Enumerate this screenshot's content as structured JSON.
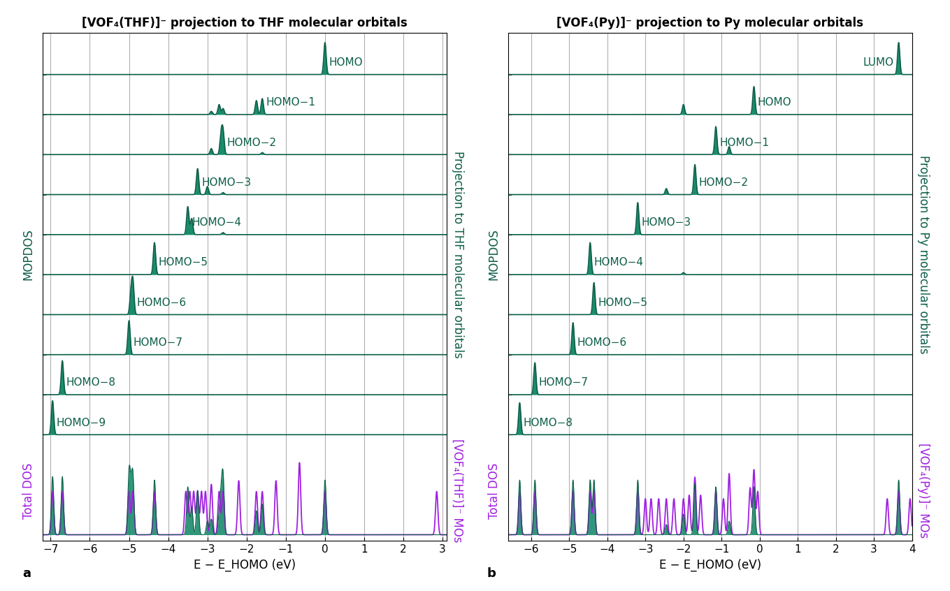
{
  "chart_data": [
    {
      "type": "line",
      "panel": "a",
      "title": "[VOF₄(THF)]⁻ projection to THF molecular orbitals",
      "x_label": "E − E_HOMO (eV)",
      "y_label": "MOPDOS",
      "y2_label": "Projection to THF molecular orbitals",
      "total_label": "Total DOS",
      "total_y2_label": "[VOF₄(THF)]⁻ MOs",
      "xlim": [
        -7.2,
        3.1
      ],
      "xticks": [
        {
          "value": -7,
          "label": "−7"
        },
        {
          "value": -6,
          "label": "−6"
        },
        {
          "value": -5,
          "label": "−5"
        },
        {
          "value": -4,
          "label": "−4"
        },
        {
          "value": -3,
          "label": "−3"
        },
        {
          "value": -2,
          "label": "−2"
        },
        {
          "value": -1,
          "label": "−1"
        },
        0,
        1,
        2,
        3
      ],
      "grid": true,
      "tick_labels": "x",
      "series": [
        {
          "name": "HOMO",
          "color": "#1a8c6c",
          "peak_energies": [
            0.0
          ],
          "peak_heights": [
            0.8
          ]
        },
        {
          "name": "HOMO−1",
          "color": "#1a8c6c",
          "peak_energies": [
            -2.9,
            -2.7,
            -2.6,
            -1.75,
            -1.6
          ],
          "peak_heights": [
            0.08,
            0.25,
            0.15,
            0.35,
            0.4
          ]
        },
        {
          "name": "HOMO−2",
          "color": "#1a8c6c",
          "peak_energies": [
            -2.9,
            -2.65,
            -2.6,
            -1.6
          ],
          "peak_heights": [
            0.15,
            0.5,
            0.55,
            0.05
          ]
        },
        {
          "name": "HOMO−3",
          "color": "#1a8c6c",
          "peak_energies": [
            -3.25,
            -3.0,
            -2.6
          ],
          "peak_heights": [
            0.65,
            0.2,
            0.05
          ]
        },
        {
          "name": "HOMO−4",
          "color": "#1a8c6c",
          "peak_energies": [
            -3.5,
            -3.4,
            -2.6
          ],
          "peak_heights": [
            0.7,
            0.4,
            0.05
          ]
        },
        {
          "name": "HOMO−5",
          "color": "#1a8c6c",
          "peak_energies": [
            -4.35
          ],
          "peak_heights": [
            0.8
          ]
        },
        {
          "name": "HOMO−6",
          "color": "#1a8c6c",
          "peak_energies": [
            -4.95,
            -4.9
          ],
          "peak_heights": [
            0.5,
            0.8
          ]
        },
        {
          "name": "HOMO−7",
          "color": "#1a8c6c",
          "peak_energies": [
            -5.0
          ],
          "peak_heights": [
            0.85
          ]
        },
        {
          "name": "HOMO−8",
          "color": "#1a8c6c",
          "peak_energies": [
            -6.7
          ],
          "peak_heights": [
            0.85
          ]
        },
        {
          "name": "HOMO−9",
          "color": "#1a8c6c",
          "peak_energies": [
            -6.95
          ],
          "peak_heights": [
            0.85
          ]
        }
      ],
      "total_dos": {
        "color": "#a020e0",
        "peak_energies": [
          -6.95,
          -6.7,
          -5.0,
          -4.9,
          -4.35,
          -3.55,
          -3.45,
          -3.35,
          -3.25,
          -3.15,
          -3.05,
          -2.9,
          -2.7,
          -2.6,
          -2.2,
          -1.75,
          -1.6,
          -1.25,
          -0.65,
          0.0,
          2.85
        ],
        "peak_heights": [
          0.6,
          0.6,
          0.6,
          0.6,
          0.6,
          0.6,
          0.6,
          0.6,
          0.6,
          0.6,
          0.6,
          0.7,
          0.6,
          0.6,
          0.75,
          0.6,
          0.6,
          0.75,
          1.0,
          0.6,
          0.6
        ]
      }
    },
    {
      "type": "line",
      "panel": "b",
      "title": "[VOF₄(Py)]⁻ projection to Py molecular orbitals",
      "x_label": "E − E_HOMO (eV)",
      "y_label": "MOPDOS",
      "y2_label": "Projection to Py molecular orbitals",
      "total_label": "Total DOS",
      "total_y2_label": "[VOF₄(Py)]⁻ MOs",
      "xlim": [
        -6.6,
        4.0
      ],
      "xticks": [
        {
          "value": -6,
          "label": "−6"
        },
        {
          "value": -5,
          "label": "−5"
        },
        {
          "value": -4,
          "label": "−4"
        },
        {
          "value": -3,
          "label": "−3"
        },
        {
          "value": -2,
          "label": "−2"
        },
        {
          "value": -1,
          "label": "−1"
        },
        0,
        1,
        2,
        3,
        4
      ],
      "grid": true,
      "tick_labels": "x",
      "series": [
        {
          "name": "LUMO",
          "color": "#1a8c6c",
          "peak_energies": [
            3.65
          ],
          "peak_heights": [
            0.8
          ]
        },
        {
          "name": "HOMO",
          "color": "#1a8c6c",
          "peak_energies": [
            -2.0,
            -0.15
          ],
          "peak_heights": [
            0.25,
            0.7
          ]
        },
        {
          "name": "HOMO−1",
          "color": "#1a8c6c",
          "peak_energies": [
            -1.15,
            -0.8
          ],
          "peak_heights": [
            0.7,
            0.2
          ]
        },
        {
          "name": "HOMO−2",
          "color": "#1a8c6c",
          "peak_energies": [
            -2.45,
            -1.7
          ],
          "peak_heights": [
            0.15,
            0.75
          ]
        },
        {
          "name": "HOMO−3",
          "color": "#1a8c6c",
          "peak_energies": [
            -3.2
          ],
          "peak_heights": [
            0.8
          ]
        },
        {
          "name": "HOMO−4",
          "color": "#1a8c6c",
          "peak_energies": [
            -4.45,
            -2.0
          ],
          "peak_heights": [
            0.8,
            0.05
          ]
        },
        {
          "name": "HOMO−5",
          "color": "#1a8c6c",
          "peak_energies": [
            -4.35
          ],
          "peak_heights": [
            0.8
          ]
        },
        {
          "name": "HOMO−6",
          "color": "#1a8c6c",
          "peak_energies": [
            -4.9
          ],
          "peak_heights": [
            0.8
          ]
        },
        {
          "name": "HOMO−7",
          "color": "#1a8c6c",
          "peak_energies": [
            -5.9
          ],
          "peak_heights": [
            0.8
          ]
        },
        {
          "name": "HOMO−8",
          "color": "#1a8c6c",
          "peak_energies": [
            -6.3
          ],
          "peak_heights": [
            0.8
          ]
        }
      ],
      "total_dos": {
        "color": "#a020e0",
        "peak_energies": [
          -6.3,
          -5.9,
          -4.9,
          -4.45,
          -4.35,
          -3.2,
          -3.0,
          -2.85,
          -2.65,
          -2.45,
          -2.25,
          -2.0,
          -1.85,
          -1.7,
          -1.55,
          -1.15,
          -0.95,
          -0.8,
          -0.25,
          -0.15,
          -0.05,
          3.35,
          3.65,
          3.95
        ],
        "peak_heights": [
          0.6,
          0.6,
          0.6,
          0.6,
          0.6,
          0.6,
          0.5,
          0.5,
          0.5,
          0.5,
          0.5,
          0.5,
          0.55,
          0.8,
          0.55,
          0.6,
          0.5,
          0.85,
          0.65,
          0.9,
          0.6,
          0.5,
          0.6,
          0.5
        ]
      }
    }
  ]
}
